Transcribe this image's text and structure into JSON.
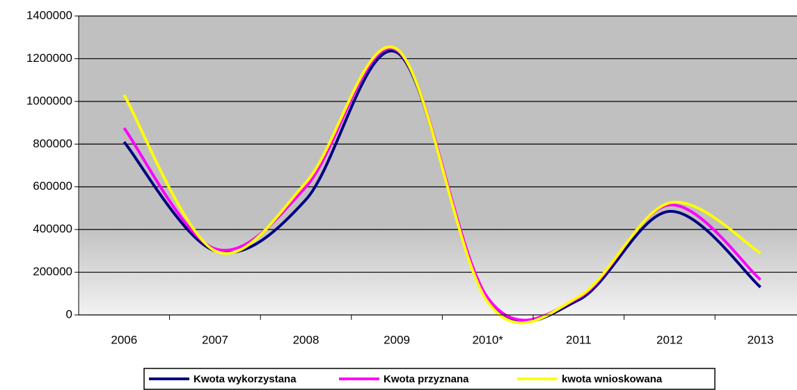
{
  "chart_data": {
    "type": "line",
    "categories": [
      "2006",
      "2007",
      "2008",
      "2009",
      "2010*",
      "2011",
      "2012",
      "2013"
    ],
    "series": [
      {
        "name": "Kwota wykorzystana",
        "color": "#000080",
        "values": [
          810000,
          300000,
          540000,
          1230000,
          70000,
          70000,
          485000,
          130000
        ]
      },
      {
        "name": "Kwota przyznana",
        "color": "#ff00ff",
        "values": [
          875000,
          310000,
          600000,
          1240000,
          80000,
          80000,
          515000,
          165000
        ]
      },
      {
        "name": "kwota wnioskowana",
        "color": "#ffff00",
        "values": [
          1030000,
          300000,
          620000,
          1245000,
          60000,
          85000,
          525000,
          290000
        ]
      }
    ],
    "ylim": [
      0,
      1400000
    ],
    "yticks": [
      0,
      200000,
      400000,
      600000,
      800000,
      1000000,
      1200000,
      1400000
    ],
    "grid": true,
    "smooth": true,
    "legend": "bottom"
  }
}
